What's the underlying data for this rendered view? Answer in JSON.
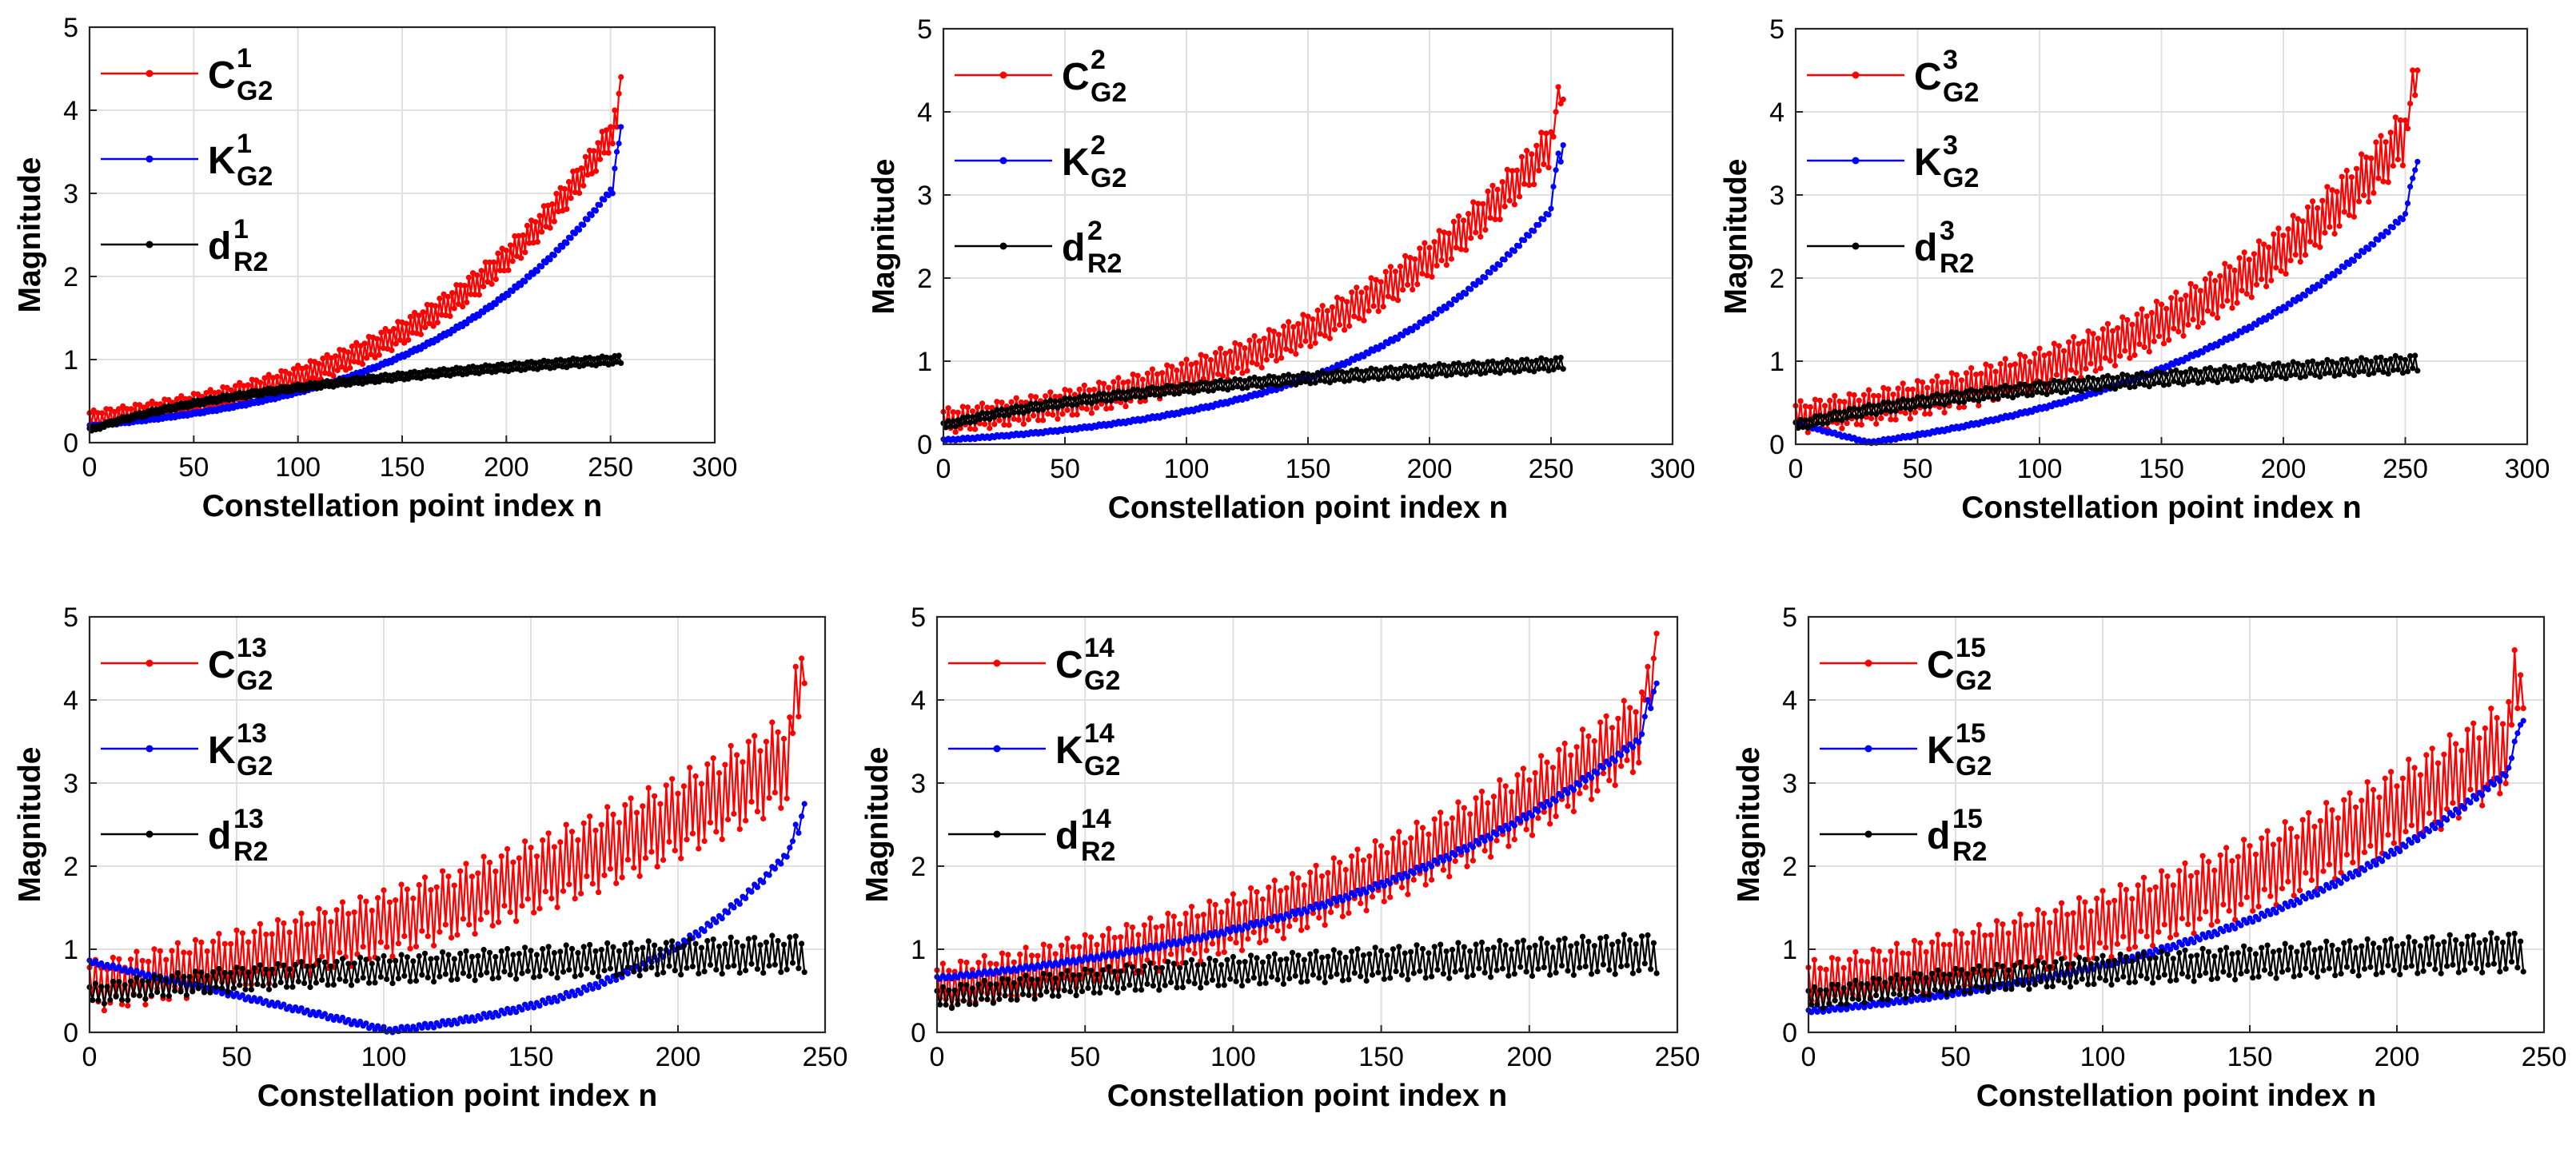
{
  "colors": {
    "red": "#ff0000",
    "blue": "#0000ff",
    "black": "#000000",
    "grid": "#e0e0e0",
    "axis": "#262626"
  },
  "chart_data": [
    {
      "type": "line",
      "panel": 1,
      "xlabel": "Constellation point index n",
      "ylabel": "Magnitude",
      "xlim": [
        0,
        300
      ],
      "ylim": [
        0,
        5
      ],
      "xticks": [
        0,
        50,
        100,
        150,
        200,
        250,
        300
      ],
      "yticks": [
        0,
        1,
        2,
        3,
        4,
        5
      ],
      "grid": true,
      "legend_position": "top-left",
      "n_points": 256,
      "series": [
        {
          "name": "C",
          "sup": "1",
          "sub": "G2",
          "color": "#ff0000",
          "profile": {
            "shape": "exp",
            "start": 0.28,
            "end": 3.9,
            "k": 2.6
          },
          "oscillation": 0.14,
          "tail": [
            3.6,
            4.0,
            3.8,
            4.2,
            4.4
          ]
        },
        {
          "name": "K",
          "sup": "1",
          "sub": "G2",
          "color": "#0000ff",
          "profile": {
            "shape": "exp",
            "start": 0.2,
            "end": 3.2,
            "k": 2.7
          },
          "oscillation": 0.02,
          "tail": [
            3.0,
            3.3,
            3.5,
            3.6,
            3.8
          ]
        },
        {
          "name": "d",
          "sup": "1",
          "sub": "R2",
          "color": "#000000",
          "profile": {
            "shape": "log",
            "start": 0.15,
            "end": 1.0,
            "k": 1.6
          },
          "oscillation": 0.04
        }
      ]
    },
    {
      "type": "line",
      "panel": 2,
      "xlabel": "Constellation point index n",
      "ylabel": "Magnitude",
      "xlim": [
        0,
        300
      ],
      "ylim": [
        0,
        5
      ],
      "xticks": [
        0,
        50,
        100,
        150,
        200,
        250,
        300
      ],
      "yticks": [
        0,
        1,
        2,
        3,
        4,
        5
      ],
      "grid": true,
      "legend_position": "top-left",
      "n_points": 256,
      "series": [
        {
          "name": "C",
          "sup": "2",
          "sub": "G2",
          "color": "#ff0000",
          "profile": {
            "shape": "exp",
            "start": 0.28,
            "end": 3.8,
            "k": 2.4
          },
          "oscillation": 0.2,
          "tail": [
            3.7,
            4.0,
            4.3,
            4.1,
            4.15
          ]
        },
        {
          "name": "K",
          "sup": "2",
          "sub": "G2",
          "color": "#0000ff",
          "profile": {
            "shape": "exp",
            "start": 0.05,
            "end": 3.0,
            "k": 3.0
          },
          "oscillation": 0.02,
          "tail": [
            3.1,
            3.3,
            3.5,
            3.4,
            3.6
          ]
        },
        {
          "name": "d",
          "sup": "2",
          "sub": "R2",
          "color": "#000000",
          "profile": {
            "shape": "log",
            "start": 0.22,
            "end": 0.97,
            "k": 1.6
          },
          "oscillation": 0.06
        }
      ]
    },
    {
      "type": "line",
      "panel": 3,
      "xlabel": "Constellation point index n",
      "ylabel": "Magnitude",
      "xlim": [
        0,
        300
      ],
      "ylim": [
        0,
        5
      ],
      "xticks": [
        0,
        50,
        100,
        150,
        200,
        250,
        300
      ],
      "yticks": [
        0,
        1,
        2,
        3,
        4,
        5
      ],
      "grid": true,
      "legend_position": "top-left",
      "n_points": 256,
      "series": [
        {
          "name": "C",
          "sup": "3",
          "sub": "G2",
          "color": "#ff0000",
          "profile": {
            "shape": "exp",
            "start": 0.32,
            "end": 3.9,
            "k": 2.3
          },
          "oscillation": 0.26,
          "tail": [
            3.8,
            4.1,
            4.5,
            4.2,
            4.5
          ]
        },
        {
          "name": "K",
          "sup": "3",
          "sub": "G2",
          "color": "#0000ff",
          "profile": {
            "shape": "vexp",
            "start": 0.25,
            "vx": 30,
            "vy": 0.02,
            "end": 2.9,
            "k": 1.9
          },
          "oscillation": 0.02,
          "tail": [
            2.9,
            3.1,
            3.2,
            3.3,
            3.4
          ]
        },
        {
          "name": "d",
          "sup": "3",
          "sub": "R2",
          "color": "#000000",
          "profile": {
            "shape": "log",
            "start": 0.22,
            "end": 0.97,
            "k": 1.6
          },
          "oscillation": 0.08
        }
      ]
    },
    {
      "type": "line",
      "panel": 4,
      "xlabel": "Constellation point index n",
      "ylabel": "Magnitude",
      "xlim": [
        0,
        250
      ],
      "ylim": [
        0,
        5
      ],
      "xticks": [
        0,
        50,
        100,
        150,
        200,
        250
      ],
      "yticks": [
        0,
        1,
        2,
        3,
        4,
        5
      ],
      "grid": true,
      "legend_position": "top-left",
      "n_points": 244,
      "series": [
        {
          "name": "C",
          "sup": "13",
          "sub": "G2",
          "color": "#ff0000",
          "profile": {
            "shape": "exp",
            "start": 0.55,
            "end": 3.4,
            "k": 1.3
          },
          "oscillation": 0.42,
          "tail": [
            3.6,
            4.4,
            3.8,
            4.5,
            4.2
          ]
        },
        {
          "name": "K",
          "sup": "13",
          "sub": "G2",
          "color": "#0000ff",
          "profile": {
            "shape": "vexp",
            "start": 0.85,
            "vx": 102,
            "vy": 0.02,
            "end": 2.4,
            "k": 2.4
          },
          "oscillation": 0.03,
          "tail": [
            2.3,
            2.5,
            2.4,
            2.6,
            2.75
          ]
        },
        {
          "name": "d",
          "sup": "13",
          "sub": "R2",
          "color": "#000000",
          "profile": {
            "shape": "log",
            "start": 0.45,
            "end": 0.95,
            "k": 1.4
          },
          "oscillation": 0.17
        }
      ]
    },
    {
      "type": "line",
      "panel": 5,
      "xlabel": "Constellation point index n",
      "ylabel": "Magnitude",
      "xlim": [
        0,
        250
      ],
      "ylim": [
        0,
        5
      ],
      "xticks": [
        0,
        50,
        100,
        150,
        200,
        250
      ],
      "yticks": [
        0,
        1,
        2,
        3,
        4,
        5
      ],
      "grid": true,
      "legend_position": "top-left",
      "n_points": 244,
      "series": [
        {
          "name": "C",
          "sup": "14",
          "sub": "G2",
          "color": "#ff0000",
          "profile": {
            "shape": "exp",
            "start": 0.55,
            "end": 3.8,
            "k": 1.6
          },
          "oscillation": 0.36,
          "tail": [
            4.0,
            4.4,
            3.9,
            4.5,
            4.8
          ]
        },
        {
          "name": "K",
          "sup": "14",
          "sub": "G2",
          "color": "#0000ff",
          "profile": {
            "shape": "exp",
            "start": 0.65,
            "end": 3.7,
            "k": 2.1
          },
          "oscillation": 0.03,
          "tail": [
            3.8,
            4.0,
            3.9,
            4.1,
            4.2
          ]
        },
        {
          "name": "d",
          "sup": "14",
          "sub": "R2",
          "color": "#000000",
          "profile": {
            "shape": "log",
            "start": 0.4,
            "end": 0.95,
            "k": 1.4
          },
          "oscillation": 0.18
        }
      ]
    },
    {
      "type": "line",
      "panel": 6,
      "xlabel": "Constellation point index n",
      "ylabel": "Magnitude",
      "xlim": [
        0,
        250
      ],
      "ylim": [
        0,
        5
      ],
      "xticks": [
        0,
        50,
        100,
        150,
        200,
        250
      ],
      "yticks": [
        0,
        1,
        2,
        3,
        4,
        5
      ],
      "grid": true,
      "legend_position": "top-left",
      "n_points": 244,
      "series": [
        {
          "name": "C",
          "sup": "15",
          "sub": "G2",
          "color": "#ff0000",
          "profile": {
            "shape": "exp",
            "start": 0.55,
            "end": 3.6,
            "k": 1.5
          },
          "oscillation": 0.42,
          "tail": [
            3.7,
            4.6,
            3.9,
            4.3,
            3.9
          ]
        },
        {
          "name": "K",
          "sup": "15",
          "sub": "G2",
          "color": "#0000ff",
          "profile": {
            "shape": "exp",
            "start": 0.25,
            "end": 3.3,
            "k": 2.2
          },
          "oscillation": 0.03,
          "tail": [
            3.3,
            3.5,
            3.6,
            3.7,
            3.75
          ]
        },
        {
          "name": "d",
          "sup": "15",
          "sub": "R2",
          "color": "#000000",
          "profile": {
            "shape": "log",
            "start": 0.4,
            "end": 0.97,
            "k": 1.4
          },
          "oscillation": 0.18
        }
      ]
    }
  ]
}
